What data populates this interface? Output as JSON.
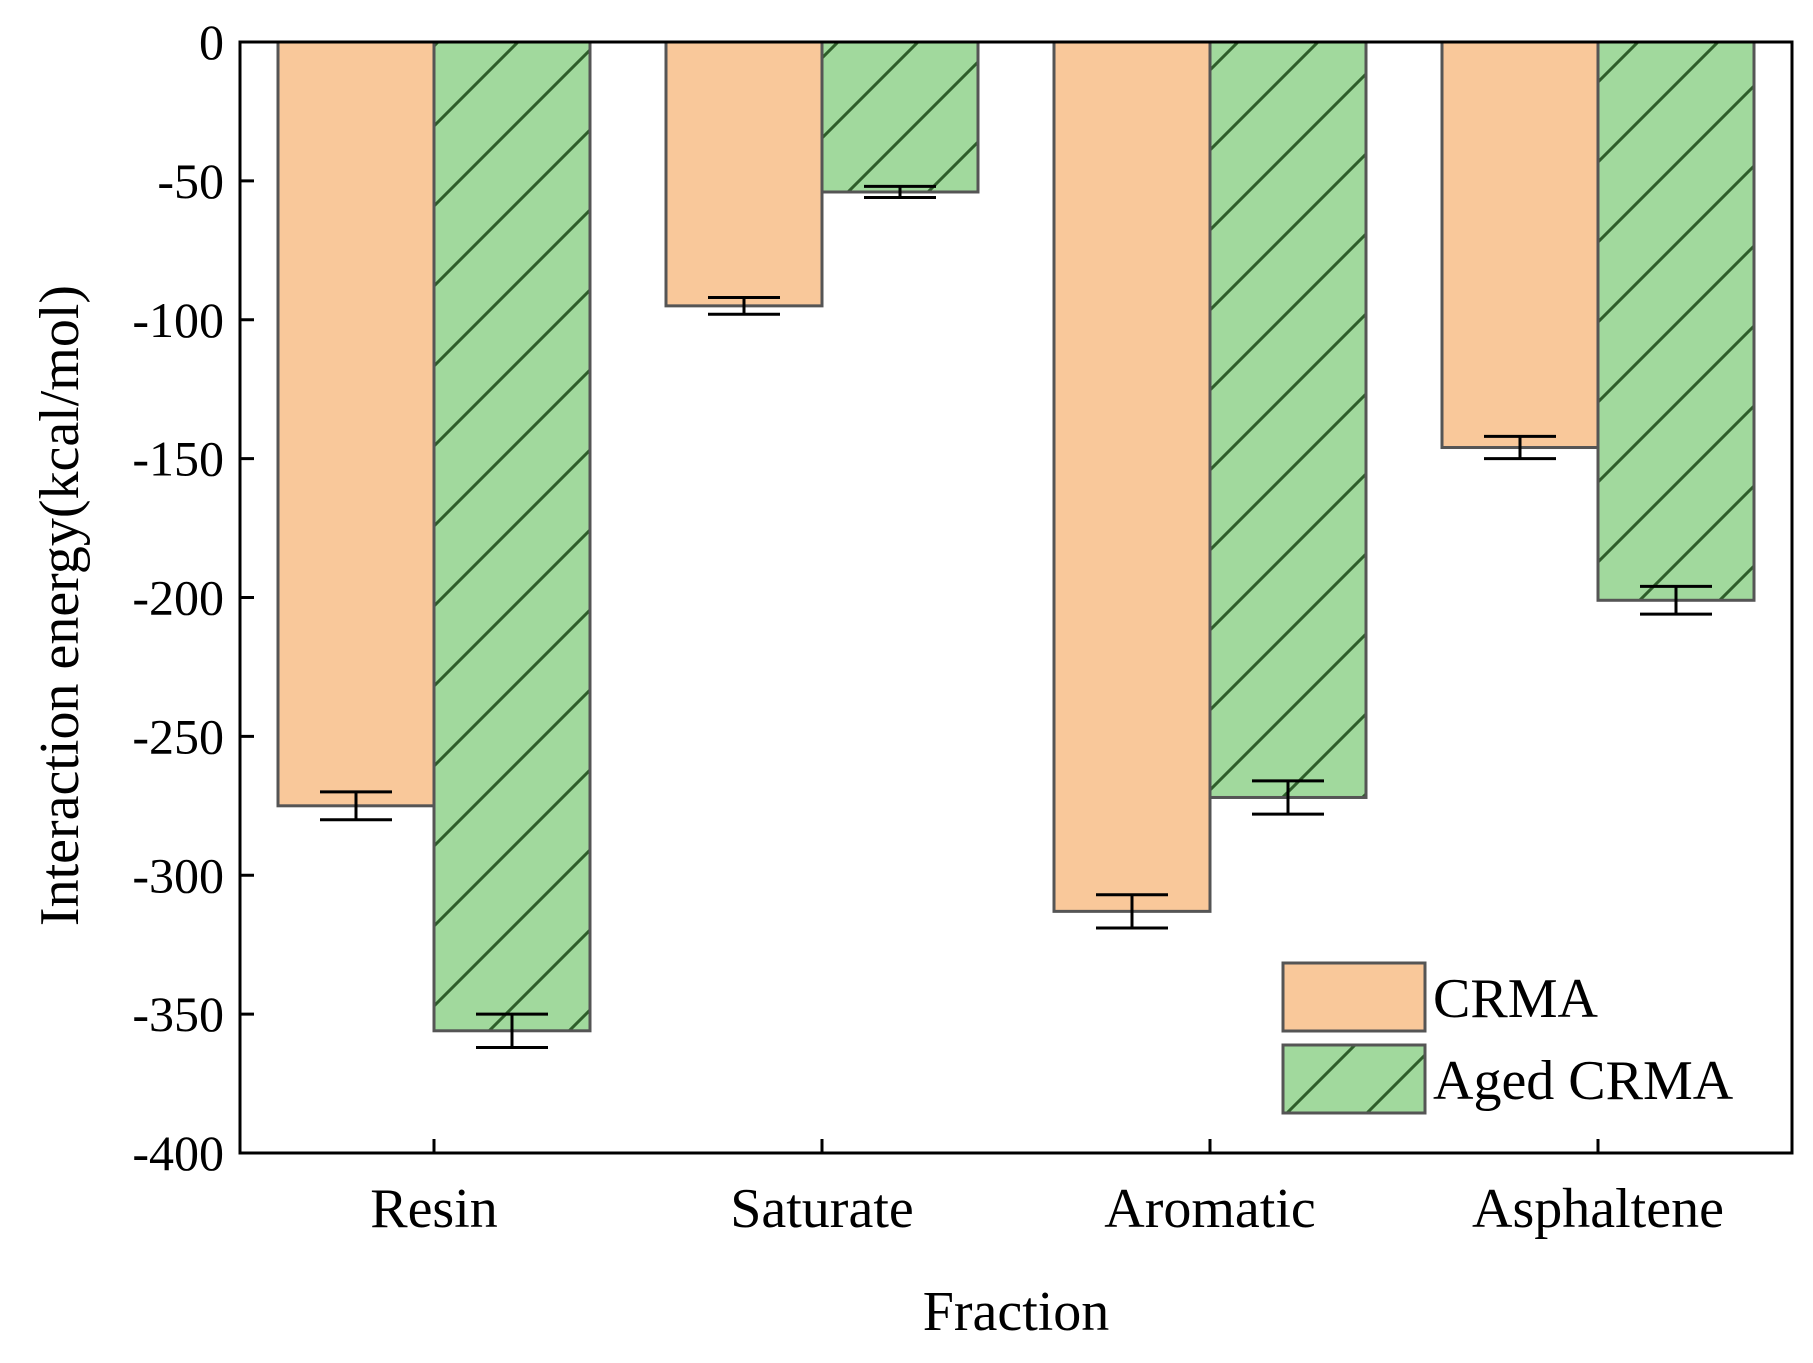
{
  "chart_data": {
    "type": "bar",
    "title": "",
    "xlabel": "Fraction",
    "ylabel": "Interaction energy(kcal/mol)",
    "categories": [
      "Resin",
      "Saturate",
      "Aromatic",
      "Asphaltene"
    ],
    "ylim": [
      -400,
      0
    ],
    "yticks": [
      0,
      -50,
      -100,
      -150,
      -200,
      -250,
      -300,
      -350,
      -400
    ],
    "ytick_labels": [
      "0",
      "-50",
      "-100",
      "-150",
      "-200",
      "-250",
      "-300",
      "-350",
      "-400"
    ],
    "series": [
      {
        "name": "CRMA",
        "values": [
          -275,
          -95,
          -313,
          -146
        ],
        "errors": [
          5,
          3,
          6,
          4
        ],
        "color": "#F9C89A",
        "hatch": false
      },
      {
        "name": "Aged CRMA",
        "values": [
          -356,
          -54,
          -272,
          -201
        ],
        "errors": [
          6,
          2,
          6,
          5
        ],
        "color": "#A1D99D",
        "hatch": true
      }
    ],
    "legend_position": "bottom-right",
    "grid": false
  },
  "colors": {
    "edge": "#555555",
    "hatch": "#2E5E2A",
    "axis": "#000000"
  }
}
